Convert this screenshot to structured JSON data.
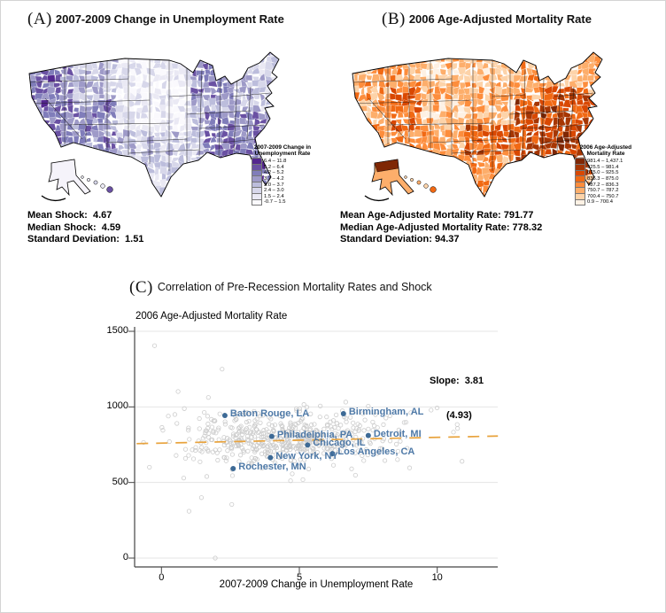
{
  "panel_a": {
    "tag": "(A)",
    "title": "2007-2009 Change in Unemployment Rate",
    "legend_title_lines": [
      "2007-2009 Change in",
      "Unemployment Rate"
    ],
    "stats_lines": [
      "Mean Shock:  4.67",
      "Median Shock:  4.59",
      "Standard Deviation:  1.51"
    ]
  },
  "panel_b": {
    "tag": "(B)",
    "title": "2006 Age-Adjusted Mortality Rate",
    "legend_title_lines": [
      "2006 Age-Adjusted",
      "Mortality Rate"
    ],
    "stats_lines": [
      "Mean Age-Adjusted Mortality Rate: 791.77",
      "Median Age-Adjusted Mortality Rate: 778.32",
      "Standard Deviation: 94.37"
    ]
  },
  "panel_c": {
    "tag": "(C)",
    "title": "Correlation of Pre-Recession Mortality Rates and Shock",
    "y_axis_title": "2006 Age-Adjusted Mortality Rate",
    "x_axis_title": "2007-2009 Change in Unemployment Rate",
    "slope_line1": "Slope:  3.81",
    "slope_line2": "(4.93)"
  },
  "chart_data": [
    {
      "type": "heatmap",
      "variant": "us-county-choropleth",
      "panel": "A",
      "title": "2007-2009 Change in Unemployment Rate",
      "legend_title": "2007-2009 Change in Unemployment Rate",
      "legend_bins": [
        {
          "label": "6.4 – 11.8",
          "color": "#54278f"
        },
        {
          "label": "5.2 – 6.4",
          "color": "#6a51a3"
        },
        {
          "label": "4.2 – 5.2",
          "color": "#807dba"
        },
        {
          "label": "3.7 – 4.2",
          "color": "#9e9ac8"
        },
        {
          "label": "3.0 – 3.7",
          "color": "#bcbddc"
        },
        {
          "label": "2.4 – 3.0",
          "color": "#d7d7ea"
        },
        {
          "label": "1.5 – 2.4",
          "color": "#eae9f4"
        },
        {
          "label": "-0.7 – 1.5",
          "color": "#faf9fd"
        }
      ],
      "summary_stats": {
        "mean_shock": 4.67,
        "median_shock": 4.59,
        "standard_deviation": 1.51
      }
    },
    {
      "type": "heatmap",
      "variant": "us-county-choropleth",
      "panel": "B",
      "title": "2006 Age-Adjusted Mortality Rate",
      "legend_title": "2006 Age-Adjusted Mortality Rate",
      "legend_bins": [
        {
          "label": "981.4 – 1,437.1",
          "color": "#7f2704"
        },
        {
          "label": "925.5 – 981.4",
          "color": "#a63603"
        },
        {
          "label": "875.0 – 925.5",
          "color": "#d94801"
        },
        {
          "label": "836.3 – 875.0",
          "color": "#f16913"
        },
        {
          "label": "787.2 – 836.3",
          "color": "#fd8d3c"
        },
        {
          "label": "750.7 – 787.2",
          "color": "#fdae6b"
        },
        {
          "label": "700.4 – 750.7",
          "color": "#fdd3a9"
        },
        {
          "label": "0.9 – 700.4",
          "color": "#fef1e4"
        }
      ],
      "summary_stats": {
        "mean_rate": 791.77,
        "median_rate": 778.32,
        "standard_deviation": 94.37
      }
    },
    {
      "type": "scatter",
      "panel": "C",
      "title": "Correlation of Pre-Recession Mortality Rates and Shock",
      "xlabel": "2007-2009 Change in Unemployment Rate",
      "ylabel": "2006 Age-Adjusted Mortality Rate",
      "xlim": [
        -1,
        12.2
      ],
      "ylim": [
        -60,
        1510
      ],
      "xticks": [
        0,
        5,
        10
      ],
      "yticks": [
        0,
        500,
        1000,
        1500
      ],
      "grid": "horizontal-only",
      "slope": 3.81,
      "slope_se": 4.93,
      "trend_line": {
        "x1": -0.9,
        "y1": 757,
        "x2": 12.2,
        "y2": 807,
        "color": "#e8a33d",
        "style": "dashed"
      },
      "labeled_points": [
        {
          "label": "Baton Rouge, LA",
          "x": 2.3,
          "y": 943
        },
        {
          "label": "Birmingham, AL",
          "x": 6.6,
          "y": 955
        },
        {
          "label": "Philadelphia, PA",
          "x": 4.0,
          "y": 805
        },
        {
          "label": "Detroit, MI",
          "x": 7.5,
          "y": 811
        },
        {
          "label": "Chicago, IL",
          "x": 5.3,
          "y": 748
        },
        {
          "label": "Los Angeles, CA",
          "x": 6.2,
          "y": 691
        },
        {
          "label": "New York, NY",
          "x": 3.95,
          "y": 664
        },
        {
          "label": "Rochester, MN",
          "x": 2.6,
          "y": 592
        }
      ],
      "point_style": {
        "marker": "open-circle",
        "color": "#cccccc"
      },
      "labeled_point_style": {
        "dot_color": "#3d6a96",
        "label_color": "#4e79a7"
      },
      "background_points": {
        "n": 520,
        "x_mean": 4.6,
        "x_sd": 2.0,
        "y_center_at_mean": 791,
        "y_center_slope": 3.81,
        "y_sd": 96,
        "x_clip": [
          -0.65,
          11.95
        ],
        "y_clip": [
          455,
          1185
        ]
      },
      "outlier_points": [
        [
          -0.25,
          1405
        ],
        [
          2.2,
          1250
        ],
        [
          1.0,
          310
        ],
        [
          1.45,
          400
        ],
        [
          1.95,
          0
        ],
        [
          2.55,
          355
        ],
        [
          10.9,
          640
        ]
      ]
    }
  ]
}
